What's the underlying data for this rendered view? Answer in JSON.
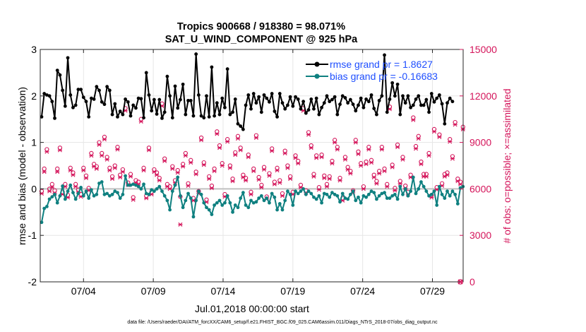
{
  "chart_data": {
    "type": "line",
    "title": "Tropics 900668 / 918380 = 98.071%",
    "subtitle": "SAT_U_WIND_COMPONENT @ 925 hPa",
    "xlabel": "Jul.01,2018 00:00:00 start",
    "ylabel_left": "rmse and bias (model - observation)",
    "ylabel_right": "# of obs: o=possible; ×=assimilated",
    "footer": "data file: /Users/raeder/DAI/ATM_forcXX/CAM6_setup/f.e21.FHIST_BGC.f09_025.CAM6assim.011/Diags_NTrS_2018-07/obs_diag_output.nc",
    "x_units": "days since Jul.01,2018 00:00:00",
    "xlim": [
      0.9,
      31.2
    ],
    "ylim_left": [
      -2,
      3
    ],
    "ylim_right": [
      0,
      15000
    ],
    "xticks": [
      {
        "value": 4,
        "label": "07/04"
      },
      {
        "value": 9,
        "label": "07/09"
      },
      {
        "value": 14,
        "label": "07/14"
      },
      {
        "value": 19,
        "label": "07/19"
      },
      {
        "value": 24,
        "label": "07/24"
      },
      {
        "value": 29,
        "label": "07/29"
      }
    ],
    "yticks_left": [
      {
        "value": -2,
        "label": "-2"
      },
      {
        "value": -1,
        "label": "-1"
      },
      {
        "value": 0,
        "label": "0"
      },
      {
        "value": 1,
        "label": "1"
      },
      {
        "value": 2,
        "label": "2"
      },
      {
        "value": 3,
        "label": "3"
      }
    ],
    "yticks_right": [
      {
        "value": 0,
        "label": "0"
      },
      {
        "value": 3000,
        "label": "3000"
      },
      {
        "value": 6000,
        "label": "6000"
      },
      {
        "value": 9000,
        "label": "9000"
      },
      {
        "value": 12000,
        "label": "12000"
      },
      {
        "value": 15000,
        "label": "15000"
      }
    ],
    "legend": {
      "position": "top-right",
      "entries": [
        {
          "label": "rmse grand pr = 1.8627",
          "series": "rmse"
        },
        {
          "label": "bias grand pr = -0.16683",
          "series": "bias"
        }
      ]
    },
    "colors": {
      "rmse": "#000000",
      "bias": "#0f8080",
      "obs": "#d4145a",
      "legend_text": "#1f4fff",
      "zero_line": "#c0c0c0",
      "grid": "#e6e6e6"
    },
    "series": [
      {
        "name": "rmse",
        "axis": "left",
        "values": [
          1.55,
          2.05,
          2.02,
          2.0,
          1.88,
          1.52,
          2.55,
          2.45,
          2.12,
          1.78,
          2.82,
          2.02,
          1.75,
          1.8,
          2.14,
          2.14,
          1.97,
          1.88,
          1.55,
          1.95,
          1.93,
          2.2,
          2.12,
          1.87,
          1.82,
          2.2,
          2.12,
          1.6,
          1.83,
          1.55,
          1.67,
          1.6,
          1.93,
          1.87,
          1.57,
          1.8,
          1.74,
          1.95,
          1.94,
          1.53,
          2.5,
          2.02,
          1.68,
          1.92,
          1.61,
          1.92,
          1.52,
          1.65,
          2.42,
          2.0,
          1.53,
          2.21,
          1.74,
          1.92,
          2.25,
          1.6,
          1.9,
          1.9,
          1.57,
          2.9,
          2.02,
          1.57,
          1.53,
          2.0,
          1.55,
          2.62,
          1.57,
          1.85,
          1.6,
          1.95,
          1.75,
          2.58,
          1.6,
          1.65,
          1.93,
          1.4,
          1.35,
          1.28,
          1.8,
          2.02,
          1.72,
          2.05,
          1.85,
          1.98,
          1.65,
          2.02,
          1.95,
          1.87,
          2.05,
          1.67,
          1.55,
          2.05,
          1.85,
          1.72,
          1.8,
          1.98,
          1.78,
          1.98,
          1.93,
          1.72,
          1.88,
          1.63,
          1.7,
          1.93,
          1.72,
          1.95,
          1.6,
          1.75,
          1.85,
          2.0,
          1.88,
          1.92,
          1.98,
          1.6,
          1.82,
          2.0,
          1.96,
          1.85,
          1.92,
          1.82,
          1.68,
          1.8,
          1.95,
          1.75,
          1.93,
          1.88,
          2.02,
          1.73,
          1.6,
          1.9,
          2.0,
          2.88,
          1.65,
          1.93,
          2.28,
          2.0,
          2.25,
          1.6,
          2.0,
          1.85,
          2.0,
          1.75,
          1.8,
          1.93,
          2.0,
          1.8,
          1.8,
          1.92,
          1.65,
          2.05,
          1.87,
          1.95,
          2.02,
          1.83,
          1.4,
          1.85,
          1.95,
          1.88
        ]
      },
      {
        "name": "bias",
        "axis": "left",
        "values": [
          -0.72,
          -0.42,
          -0.38,
          -0.22,
          -0.17,
          -0.12,
          -0.3,
          -0.15,
          0.06,
          -0.22,
          -0.05,
          0.08,
          -0.08,
          -0.22,
          -0.1,
          0.03,
          -0.15,
          -0.05,
          -0.2,
          -0.02,
          -0.15,
          -0.12,
          0.12,
          0.15,
          -0.12,
          -0.1,
          -0.15,
          -0.12,
          -0.05,
          -0.08,
          -0.2,
          -0.12,
          0.28,
          0.08,
          0.08,
          0.1,
          0.08,
          0.05,
          0.0,
          0.1,
          -0.1,
          -0.12,
          -0.02,
          -0.05,
          0.0,
          0.05,
          -0.05,
          -0.15,
          -0.25,
          -0.45,
          -0.05,
          0.08,
          0.25,
          -0.15,
          -0.4,
          -0.25,
          -0.1,
          -0.2,
          -0.6,
          -0.25,
          -0.05,
          -0.12,
          -0.3,
          -0.4,
          -0.45,
          -0.55,
          -0.35,
          -0.3,
          -0.25,
          -0.35,
          -0.3,
          -0.15,
          -0.3,
          -0.5,
          -0.35,
          -0.4,
          -0.2,
          -0.08,
          -0.35,
          -0.4,
          -0.25,
          -0.3,
          -0.28,
          -0.2,
          -0.15,
          -0.25,
          -0.2,
          -0.3,
          -0.1,
          -0.18,
          -0.45,
          -0.32,
          -0.45,
          -0.25,
          -0.05,
          -0.12,
          -0.35,
          -0.05,
          -0.1,
          -0.05,
          0.0,
          -0.12,
          -0.05,
          -0.1,
          -0.18,
          -0.22,
          -0.15,
          -0.3,
          -0.1,
          -0.12,
          -0.18,
          -0.08,
          -0.12,
          -0.15,
          -0.28,
          -0.1,
          -0.2,
          -0.22,
          -0.12,
          -0.05,
          -0.25,
          -0.18,
          -0.3,
          -0.15,
          -0.18,
          -0.12,
          -0.05,
          -0.08,
          -0.22,
          -0.15,
          -0.1,
          -0.08,
          -0.2,
          -0.2,
          -0.15,
          -0.12,
          -0.22,
          0.05,
          -0.12,
          0.0,
          -0.15,
          -0.05,
          0.25,
          -0.1,
          0.0,
          0.15,
          0.05,
          -0.05,
          -0.15,
          -0.12,
          -0.05,
          -0.35,
          0.05,
          -0.12,
          -0.2,
          -0.05,
          -0.15,
          -0.05,
          -0.12,
          -0.32,
          0.02,
          0.05
        ]
      },
      {
        "name": "possible",
        "axis": "right",
        "marker": "circle",
        "values": [
          5850,
          7300,
          8550,
          6000,
          6300,
          5900,
          7300,
          8650,
          5800,
          6300,
          5600,
          7350,
          7050,
          6300,
          5950,
          5650,
          7350,
          6850,
          6050,
          8300,
          7600,
          7450,
          9000,
          8300,
          9350,
          8050,
          7350,
          6800,
          7500,
          8700,
          6900,
          7250,
          11200,
          6400,
          6950,
          5450,
          6550,
          6450,
          10500,
          7350,
          5550,
          8650,
          5800,
          7250,
          7050,
          6700,
          11500,
          7950,
          6300,
          6150,
          7450,
          6550,
          7200,
          5500,
          7600,
          8300,
          6350,
          7850,
          5400,
          7100,
          5850,
          9300,
          7700,
          5300,
          6800,
          6200,
          7300,
          9700,
          8800,
          7650,
          5650,
          9200,
          7500,
          6650,
          8350,
          9400,
          8650,
          6900,
          6700,
          8200,
          5800,
          7300,
          9450,
          6750,
          6250,
          7400,
          5500,
          7000,
          8600,
          6450,
          7350,
          6550,
          5700,
          8450,
          7500,
          6800,
          5800,
          8150,
          7800,
          6250,
          11200,
          5900,
          9650,
          8800,
          6950,
          8150,
          6100,
          8200,
          6850,
          6300,
          6800,
          7800,
          9150,
          8700,
          6700,
          5400,
          8050,
          7400,
          7150,
          5900,
          9150,
          8400,
          7650,
          6150,
          7750,
          8700,
          7850,
          6900,
          6500,
          7150,
          8700,
          7300,
          6300,
          11300,
          7550,
          6050,
          8850,
          6500,
          8050,
          6200,
          5800,
          6900,
          10600,
          8750,
          9400,
          7750,
          6950,
          6950,
          8300,
          5600,
          9850,
          6100,
          9500,
          6350,
          6950,
          7050,
          9200,
          8100,
          10300,
          6650,
          6450,
          10000
        ]
      },
      {
        "name": "assimilated",
        "axis": "right",
        "marker": "x",
        "values": [
          5700,
          7100,
          8400,
          5850,
          6100,
          5700,
          7100,
          8500,
          5650,
          6150,
          5450,
          7200,
          6900,
          6150,
          5800,
          5500,
          7200,
          6700,
          5900,
          8150,
          7450,
          7300,
          8850,
          8150,
          9200,
          7900,
          7200,
          6650,
          7350,
          8550,
          6750,
          7100,
          11050,
          6250,
          6800,
          5300,
          6400,
          6300,
          10350,
          7200,
          5400,
          8500,
          5650,
          7100,
          6900,
          6550,
          11350,
          7800,
          6150,
          6000,
          7300,
          6400,
          7050,
          3700,
          7450,
          8150,
          6200,
          7700,
          5250,
          6950,
          5700,
          9150,
          7550,
          5150,
          6650,
          6050,
          7150,
          9550,
          8650,
          7500,
          5500,
          9050,
          7350,
          6500,
          8200,
          9250,
          8500,
          6750,
          6550,
          8050,
          5650,
          7150,
          9300,
          6600,
          6100,
          7250,
          5350,
          6850,
          8450,
          6300,
          7200,
          6400,
          5550,
          8300,
          7350,
          6650,
          5650,
          8000,
          7650,
          6100,
          11050,
          5750,
          9500,
          8650,
          6800,
          8000,
          5950,
          8050,
          6700,
          6150,
          6650,
          7650,
          9000,
          8550,
          6550,
          5250,
          7900,
          7250,
          7000,
          5750,
          9000,
          8250,
          7500,
          6000,
          7600,
          8550,
          7700,
          6750,
          6350,
          7000,
          8550,
          7150,
          6150,
          11150,
          7400,
          5900,
          8700,
          6350,
          7900,
          6050,
          5650,
          6750,
          10450,
          8600,
          9250,
          7600,
          6800,
          6800,
          8150,
          5450,
          9700,
          5950,
          9350,
          6200,
          6800,
          6900,
          9050,
          7950,
          10150,
          6500,
          6300,
          9850
        ]
      }
    ]
  }
}
